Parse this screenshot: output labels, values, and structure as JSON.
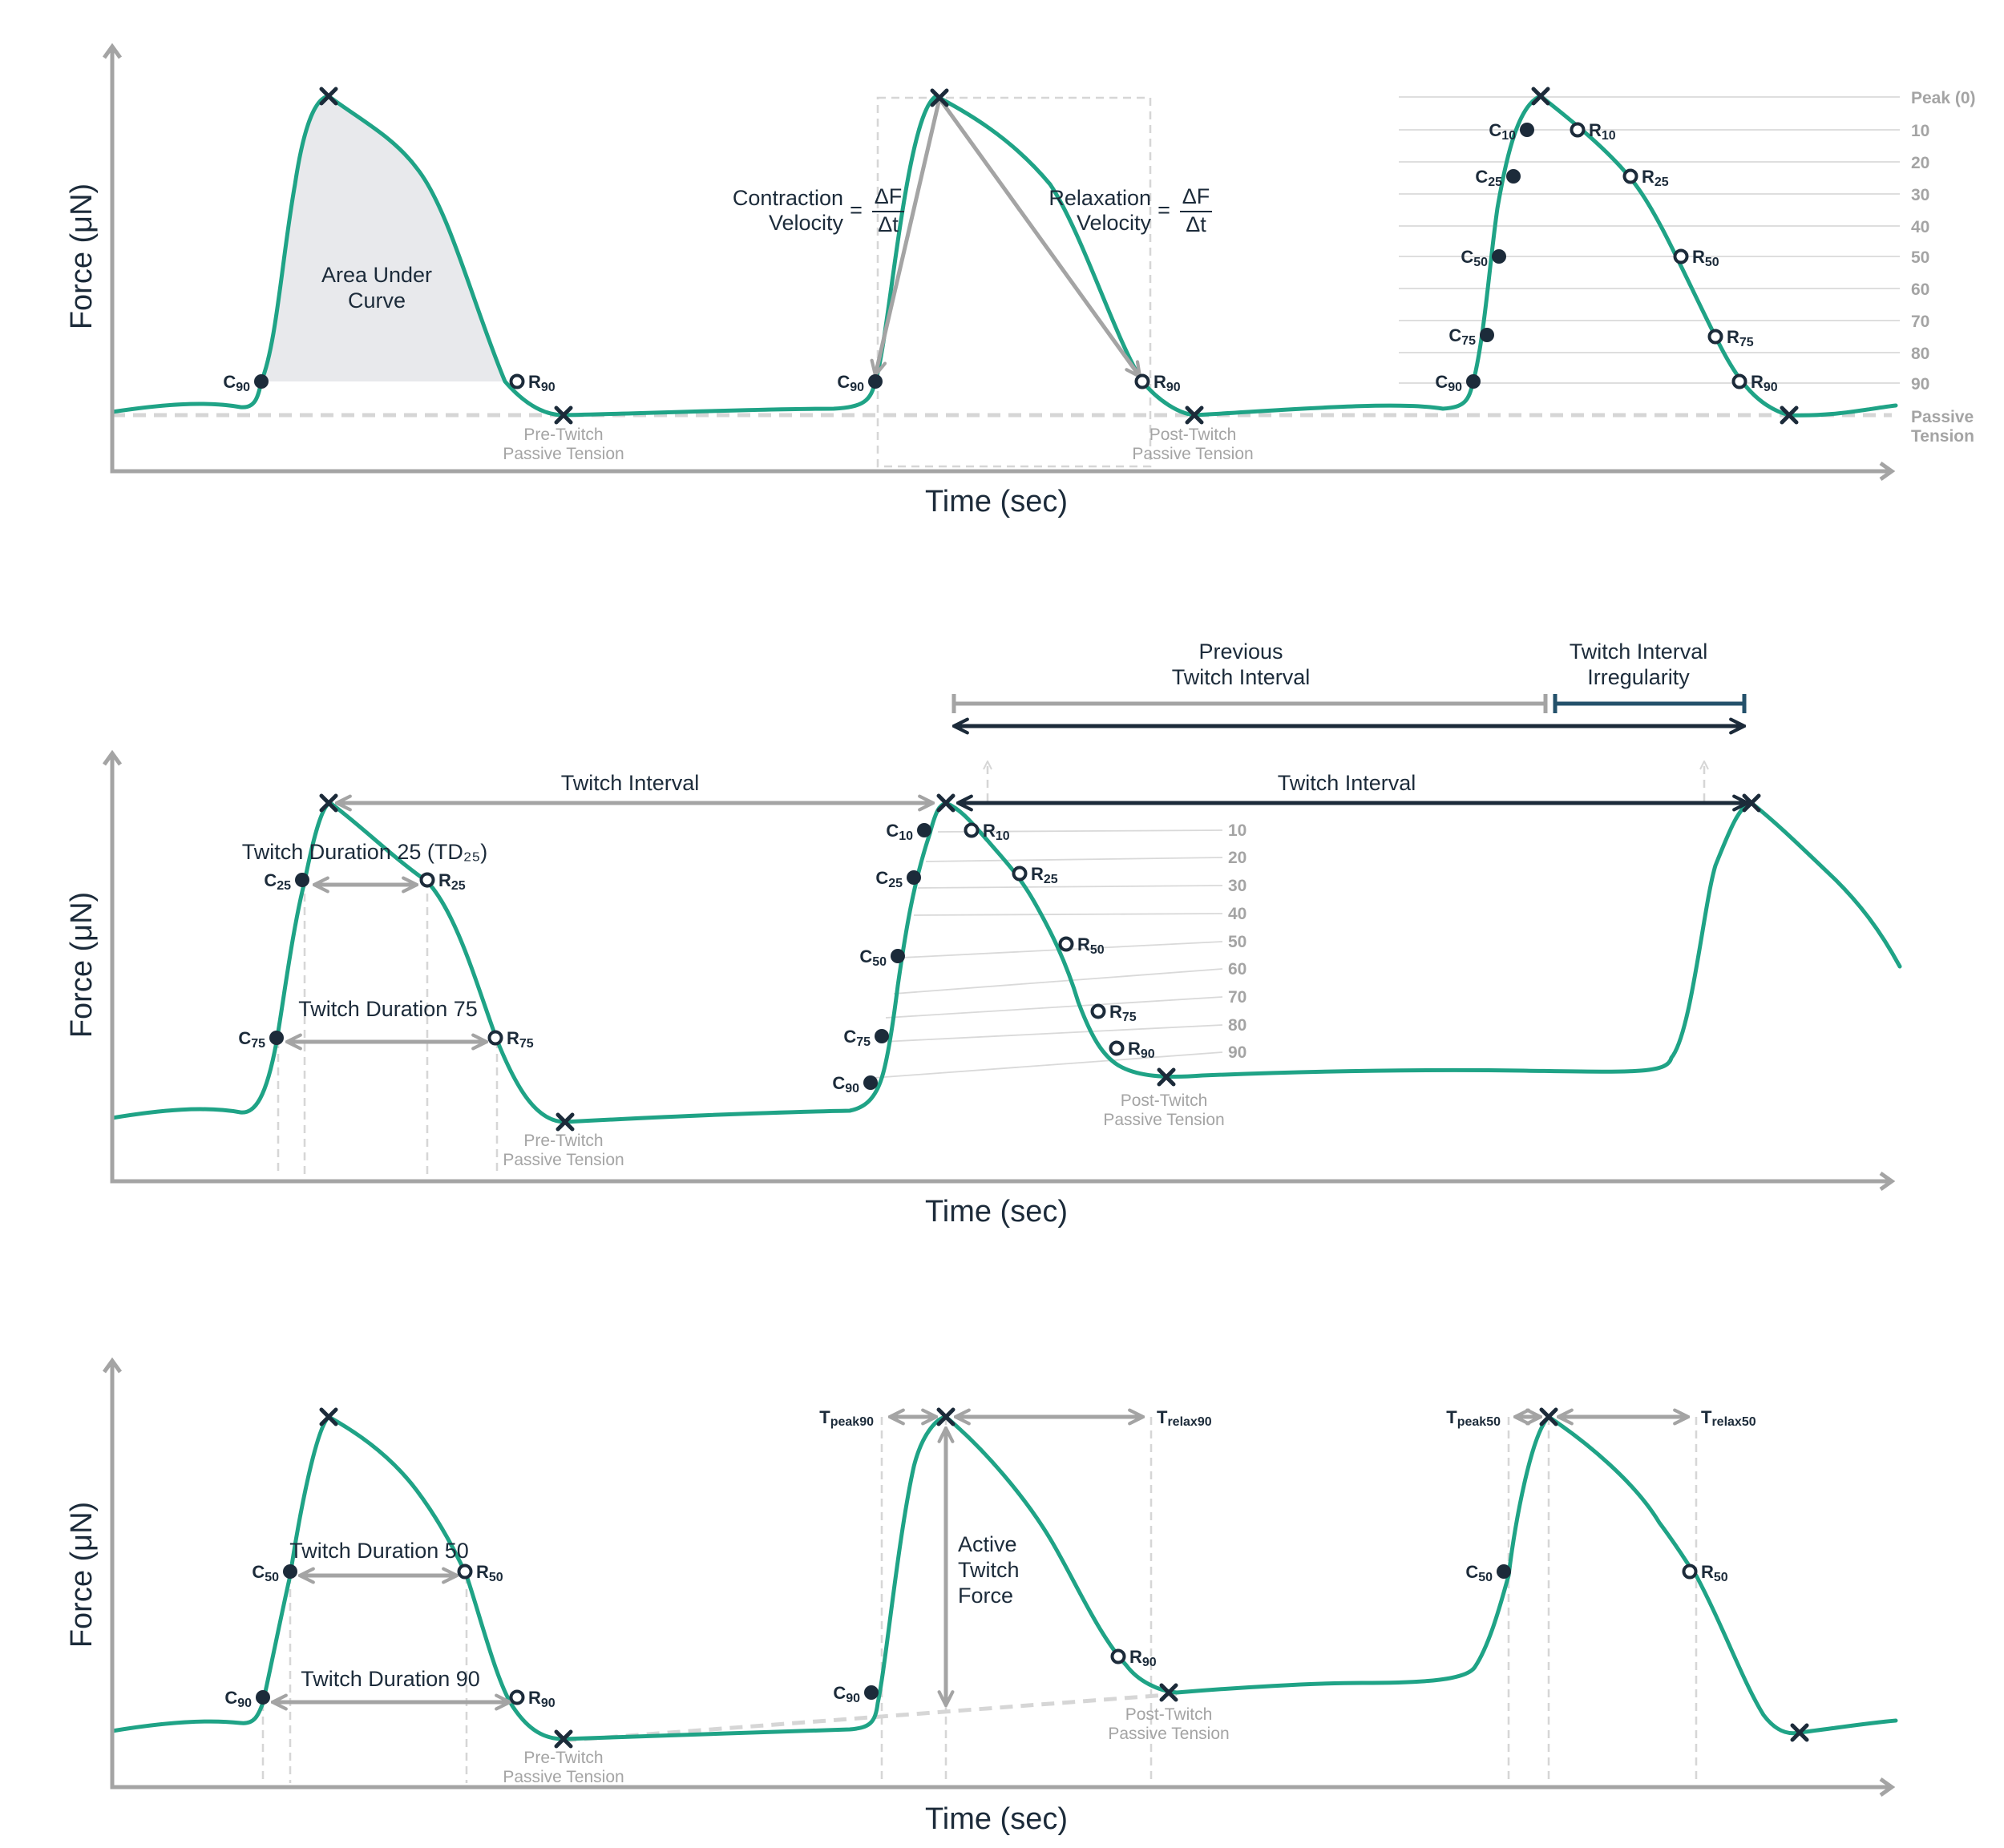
{
  "axes": {
    "x_label": "Time (sec)",
    "y_label": "Force (μN)"
  },
  "colors": {
    "curve": "#1fa386",
    "marker": "#1c2b3a",
    "axis": "#a4a4a4",
    "guide": "#d6d6d6",
    "irregularity": "#24516b",
    "area_fill": "#e8e9ec"
  },
  "panel1": {
    "area_label": [
      "Area Under",
      "Curve"
    ],
    "pre_twitch": [
      "Pre-Twitch",
      "Passive Tension"
    ],
    "post_twitch": [
      "Post-Twitch",
      "Passive Tension"
    ],
    "contraction_velocity": [
      "Contraction",
      "Velocity"
    ],
    "relaxation_velocity": [
      "Relaxation",
      "Velocity"
    ],
    "equals": "=",
    "delta_f": "ΔF",
    "delta_t": "Δt",
    "level_labels": [
      "Peak (0)",
      "10",
      "20",
      "30",
      "40",
      "50",
      "60",
      "70",
      "80",
      "90"
    ],
    "passive_tension": [
      "Passive",
      "Tension"
    ]
  },
  "panel2": {
    "twitch_interval": "Twitch Interval",
    "previous_interval": [
      "Previous",
      "Twitch Interval"
    ],
    "irregularity": [
      "Twitch Interval",
      "Irregularity"
    ],
    "td25_label": "Twitch Duration 25 (TD₂₅)",
    "td75_label": "Twitch Duration 75",
    "pre_twitch": [
      "Pre-Twitch",
      "Passive Tension"
    ],
    "post_twitch": [
      "Post-Twitch",
      "Passive Tension"
    ],
    "level_labels": [
      "10",
      "20",
      "30",
      "40",
      "50",
      "60",
      "70",
      "80",
      "90"
    ]
  },
  "panel3": {
    "td50_label": "Twitch Duration 50",
    "td90_label": "Twitch Duration 90",
    "active_force": [
      "Active",
      "Twitch",
      "Force"
    ],
    "pre_twitch": [
      "Pre-Twitch",
      "Passive Tension"
    ],
    "post_twitch": [
      "Post-Twitch",
      "Passive Tension"
    ],
    "t_peak90": [
      "T",
      "peak90"
    ],
    "t_relax90": [
      "T",
      "relax90"
    ],
    "t_peak50": [
      "T",
      "peak50"
    ],
    "t_relax50": [
      "T",
      "relax50"
    ]
  },
  "point_labels": {
    "C10": [
      "C",
      "10"
    ],
    "C25": [
      "C",
      "25"
    ],
    "C50": [
      "C",
      "50"
    ],
    "C75": [
      "C",
      "75"
    ],
    "C90": [
      "C",
      "90"
    ],
    "R10": [
      "R",
      "10"
    ],
    "R25": [
      "R",
      "25"
    ],
    "R50": [
      "R",
      "50"
    ],
    "R75": [
      "R",
      "75"
    ],
    "R90": [
      "R",
      "90"
    ]
  }
}
